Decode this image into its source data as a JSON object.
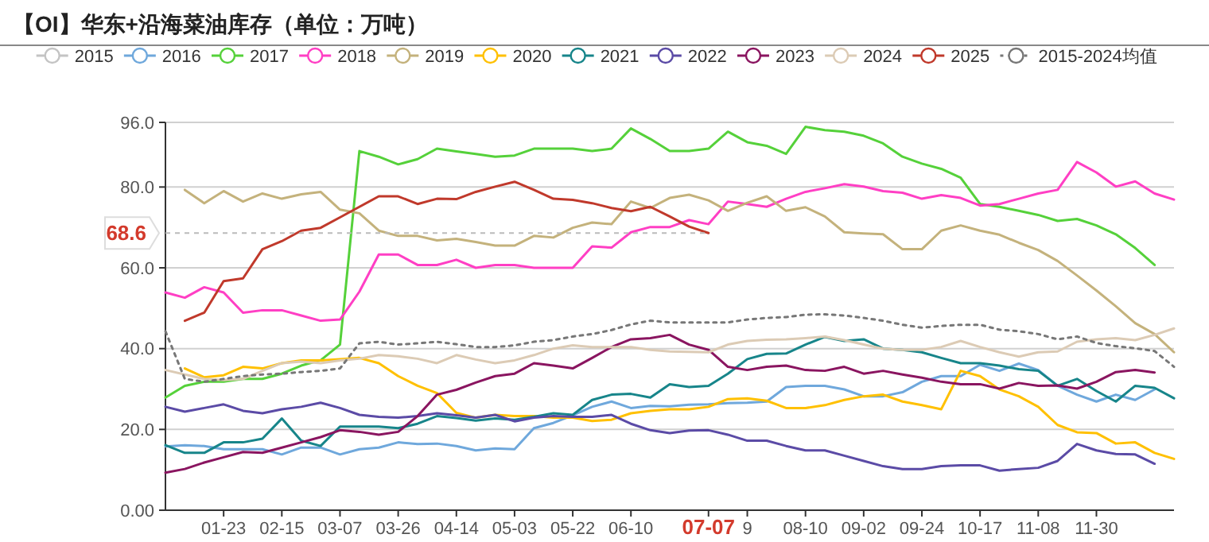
{
  "chart_data": {
    "type": "line",
    "title": "【OI】华东+沿海菜油库存（单位：万吨）",
    "categories": [
      null,
      null,
      null,
      "01-23",
      null,
      null,
      "02-15",
      null,
      null,
      "03-07",
      null,
      null,
      "03-26",
      null,
      null,
      "04-14",
      null,
      null,
      "05-03",
      null,
      null,
      "05-22",
      null,
      null,
      "06-10",
      null,
      null,
      null,
      "07-07",
      null,
      "9",
      null,
      null,
      "08-10",
      null,
      null,
      "09-02",
      null,
      null,
      "09-24",
      null,
      null,
      "10-17",
      null,
      null,
      "11-08",
      null,
      null,
      "11-30",
      null,
      null,
      null,
      null
    ],
    "ylim": [
      0,
      96
    ],
    "yticks": [
      {
        "value": 0,
        "label": "0.00"
      },
      {
        "value": 20,
        "label": "20.0"
      },
      {
        "value": 40,
        "label": "40.0"
      },
      {
        "value": 60,
        "label": "60.0"
      },
      {
        "value": 80,
        "label": "80.0"
      },
      {
        "value": 96,
        "label": "96.0"
      }
    ],
    "grid": "y",
    "legend": "top",
    "annotations": [
      {
        "text": "68.6",
        "x": "07-07",
        "y": 68.6
      }
    ],
    "series": [
      {
        "name": "2015",
        "color": "#c4c4c4",
        "values": [
          null,
          null,
          null,
          null,
          null,
          null,
          null,
          null,
          null,
          null,
          null,
          null,
          null,
          null,
          null,
          null,
          null,
          null,
          null,
          null,
          null,
          null,
          null,
          null,
          null,
          null,
          null,
          null,
          null,
          null,
          null,
          null,
          null,
          null,
          null,
          null,
          null,
          null,
          null,
          null,
          null,
          null,
          null,
          null,
          null,
          null,
          null,
          null,
          null,
          null,
          null,
          null,
          null
        ]
      },
      {
        "name": "2016",
        "color": "#6fa8dc",
        "values": [
          15.8,
          16.1,
          15.9,
          15.1,
          15.1,
          15.1,
          13.8,
          15.5,
          15.5,
          13.8,
          15.1,
          15.5,
          16.8,
          16.4,
          16.5,
          15.9,
          14.8,
          15.3,
          15.1,
          20.3,
          21.6,
          23.5,
          25.6,
          26.9,
          25.3,
          25.8,
          25.7,
          26.1,
          26.2,
          26.5,
          26.6,
          26.9,
          30.5,
          30.8,
          30.8,
          29.9,
          28.2,
          28.2,
          29.2,
          31.8,
          33.2,
          33.2,
          36,
          34.5,
          36.3,
          34.7,
          30.8,
          28.6,
          26.9,
          28.6,
          27.3,
          29.9,
          null
        ]
      },
      {
        "name": "2017",
        "color": "#55d13a",
        "values": [
          27.9,
          30.8,
          31.8,
          31.8,
          32.5,
          32.5,
          33.8,
          35.8,
          37.1,
          41,
          88.9,
          87.5,
          85.6,
          86.9,
          89.5,
          88.8,
          88.2,
          87.5,
          87.8,
          89.5,
          89.5,
          89.5,
          88.9,
          89.5,
          94.5,
          91.9,
          88.9,
          88.9,
          89.5,
          93.7,
          91.1,
          90.2,
          88.2,
          94.9,
          94.1,
          93.7,
          92.7,
          90.8,
          87.5,
          85.8,
          84.5,
          82.3,
          75.8,
          75.1,
          74.1,
          73.1,
          71.6,
          72.1,
          70.5,
          68.3,
          64.9,
          60.7,
          null
        ]
      },
      {
        "name": "2018",
        "color": "#ff3fc4",
        "values": [
          53.9,
          52.6,
          55.2,
          53.9,
          48.9,
          49.5,
          49.5,
          48.2,
          46.9,
          47.2,
          54.1,
          63.3,
          63.3,
          60.7,
          60.7,
          62,
          60,
          60.7,
          60.7,
          60,
          60,
          60,
          65.3,
          65,
          68.8,
          70.1,
          70.1,
          71.8,
          70.8,
          76.4,
          75.8,
          75.1,
          77.1,
          78.8,
          79.7,
          80.7,
          80.1,
          79,
          78.6,
          77.1,
          78,
          77.3,
          75.4,
          75.8,
          77.1,
          78.4,
          79.3,
          86.2,
          83.6,
          80.1,
          81.4,
          78.4,
          76.9
        ]
      },
      {
        "name": "2019",
        "color": "#c4b27c",
        "values": [
          null,
          79.3,
          76,
          79,
          76.4,
          78.4,
          77.1,
          78.2,
          78.8,
          74.4,
          73.5,
          69.2,
          67.9,
          67.9,
          66.8,
          67.2,
          66.4,
          65.5,
          65.5,
          67.9,
          67.5,
          69.9,
          71.2,
          70.8,
          76.4,
          74.8,
          77.3,
          78.1,
          76.7,
          74.1,
          76.1,
          77.7,
          74.1,
          75,
          72.7,
          68.8,
          68.5,
          68.3,
          64.6,
          64.6,
          69.2,
          70.5,
          69.2,
          68.2,
          66.2,
          64.4,
          61.7,
          58.1,
          54.4,
          50.5,
          46.3,
          43.6,
          39.1
        ]
      },
      {
        "name": "2020",
        "color": "#ffc000",
        "values": [
          null,
          35.1,
          32.9,
          33.4,
          35.5,
          35.1,
          36.4,
          37.1,
          37.1,
          37.4,
          37.7,
          36.4,
          33.2,
          30.8,
          29,
          24.1,
          22.9,
          23.6,
          23.3,
          23.3,
          22.9,
          22.9,
          22.1,
          22.4,
          24,
          24.6,
          25,
          25,
          25.6,
          27.5,
          27.7,
          27.1,
          25.3,
          25.3,
          26,
          27.3,
          28.2,
          28.6,
          26.9,
          26,
          25,
          34.5,
          33.2,
          29.9,
          28.2,
          25.6,
          21.1,
          19.3,
          19.1,
          16.5,
          16.8,
          14.2,
          12.7
        ]
      },
      {
        "name": "2021",
        "color": "#17858a",
        "values": [
          16.1,
          14.2,
          14.2,
          16.8,
          16.8,
          17.7,
          22.7,
          17.2,
          15.9,
          20.7,
          20.7,
          20.7,
          20.3,
          21.4,
          23.3,
          22.8,
          22.2,
          22.7,
          22.4,
          23.1,
          24,
          23.6,
          27.3,
          28.6,
          28.8,
          27.9,
          31.2,
          30.5,
          30.8,
          33.8,
          37.4,
          38.7,
          38.8,
          41,
          42.9,
          41.9,
          42.3,
          40,
          39.7,
          39.1,
          37.7,
          36.4,
          36.4,
          35.8,
          34.9,
          34.5,
          30.8,
          32.5,
          29.5,
          26.9,
          30.8,
          30.3,
          27.7
        ]
      },
      {
        "name": "2022",
        "color": "#5b4ba6",
        "values": [
          25.6,
          24.4,
          25.3,
          26.2,
          24.6,
          24,
          25,
          25.6,
          26.6,
          25.3,
          23.6,
          23.1,
          22.9,
          23.3,
          24,
          23.5,
          22.9,
          23.6,
          22,
          22.9,
          23.3,
          23.1,
          23.1,
          23.6,
          21.4,
          19.8,
          19.1,
          19.7,
          19.8,
          18.7,
          17.2,
          17.2,
          15.9,
          14.8,
          14.8,
          13.5,
          12.2,
          10.9,
          10.2,
          10.2,
          10.9,
          11.1,
          11.1,
          9.8,
          10.2,
          10.5,
          12.2,
          16.4,
          14.8,
          13.9,
          13.8,
          11.5,
          null
        ]
      },
      {
        "name": "2023",
        "color": "#8a1560",
        "values": [
          9.3,
          10.2,
          11.8,
          13.1,
          14.4,
          14.2,
          15.5,
          16.8,
          18.1,
          19.8,
          19.4,
          18.7,
          19.4,
          23.3,
          28.6,
          29.8,
          31.6,
          33.2,
          33.8,
          36.4,
          35.8,
          35.1,
          37.7,
          40.4,
          42.3,
          42.6,
          43.4,
          41,
          39.7,
          35.5,
          34.7,
          35.5,
          35.8,
          34.7,
          34.5,
          35.5,
          33.8,
          34.5,
          33.6,
          32.8,
          31.8,
          31.2,
          31.2,
          30.1,
          31.5,
          30.8,
          30.9,
          30.1,
          31.8,
          34.2,
          34.7,
          34.1,
          null
        ]
      },
      {
        "name": "2024",
        "color": "#dccbb5",
        "values": [
          34.7,
          33.6,
          32.5,
          32.2,
          32.5,
          34.5,
          36.4,
          36.8,
          36.4,
          37.1,
          37.5,
          38.4,
          38.1,
          37.5,
          36.4,
          38.4,
          37.3,
          36.4,
          37.1,
          38.4,
          40,
          40.8,
          40.4,
          40.4,
          40.4,
          39.7,
          39.3,
          39.2,
          39.1,
          41,
          41.9,
          42.2,
          42.3,
          42.6,
          43,
          42.1,
          41,
          40,
          39.7,
          39.7,
          40.4,
          41.9,
          40.4,
          39.1,
          38,
          39.1,
          39.3,
          41.7,
          42.3,
          42.6,
          42.1,
          43.4,
          45
        ]
      },
      {
        "name": "2025",
        "color": "#c0392b",
        "values": [
          null,
          46.9,
          48.9,
          56.7,
          57.4,
          64.6,
          66.6,
          69.2,
          69.9,
          72.5,
          75.1,
          77.7,
          77.7,
          75.8,
          77.1,
          77,
          78.8,
          80.1,
          81.3,
          79.3,
          77.1,
          76.8,
          76,
          74.8,
          74,
          75.1,
          72.7,
          70.2,
          68.6,
          null,
          null,
          null,
          null,
          null,
          null,
          null,
          null,
          null,
          null,
          null,
          null,
          null,
          null,
          null,
          null,
          null,
          null,
          null,
          null,
          null,
          null,
          null,
          null
        ]
      },
      {
        "name": "2015-2024均值",
        "color": "#777777",
        "line_style": "dotted",
        "values": [
          44.3,
          32.5,
          31.8,
          32.5,
          33.2,
          33.6,
          33.8,
          34.2,
          34.5,
          35.1,
          41.3,
          41.7,
          41,
          41.3,
          41.7,
          41.1,
          40.4,
          40.4,
          40.8,
          41.7,
          42.1,
          43,
          43.6,
          44.6,
          46,
          46.9,
          46.5,
          46.5,
          46.5,
          46.5,
          47.2,
          47.6,
          47.8,
          48.4,
          48.5,
          48.2,
          47.6,
          46.9,
          45.9,
          45.2,
          45.6,
          45.9,
          45.9,
          44.7,
          44.3,
          43.6,
          42.3,
          43,
          41.4,
          40.6,
          40.1,
          39.4,
          35.5
        ]
      }
    ]
  }
}
